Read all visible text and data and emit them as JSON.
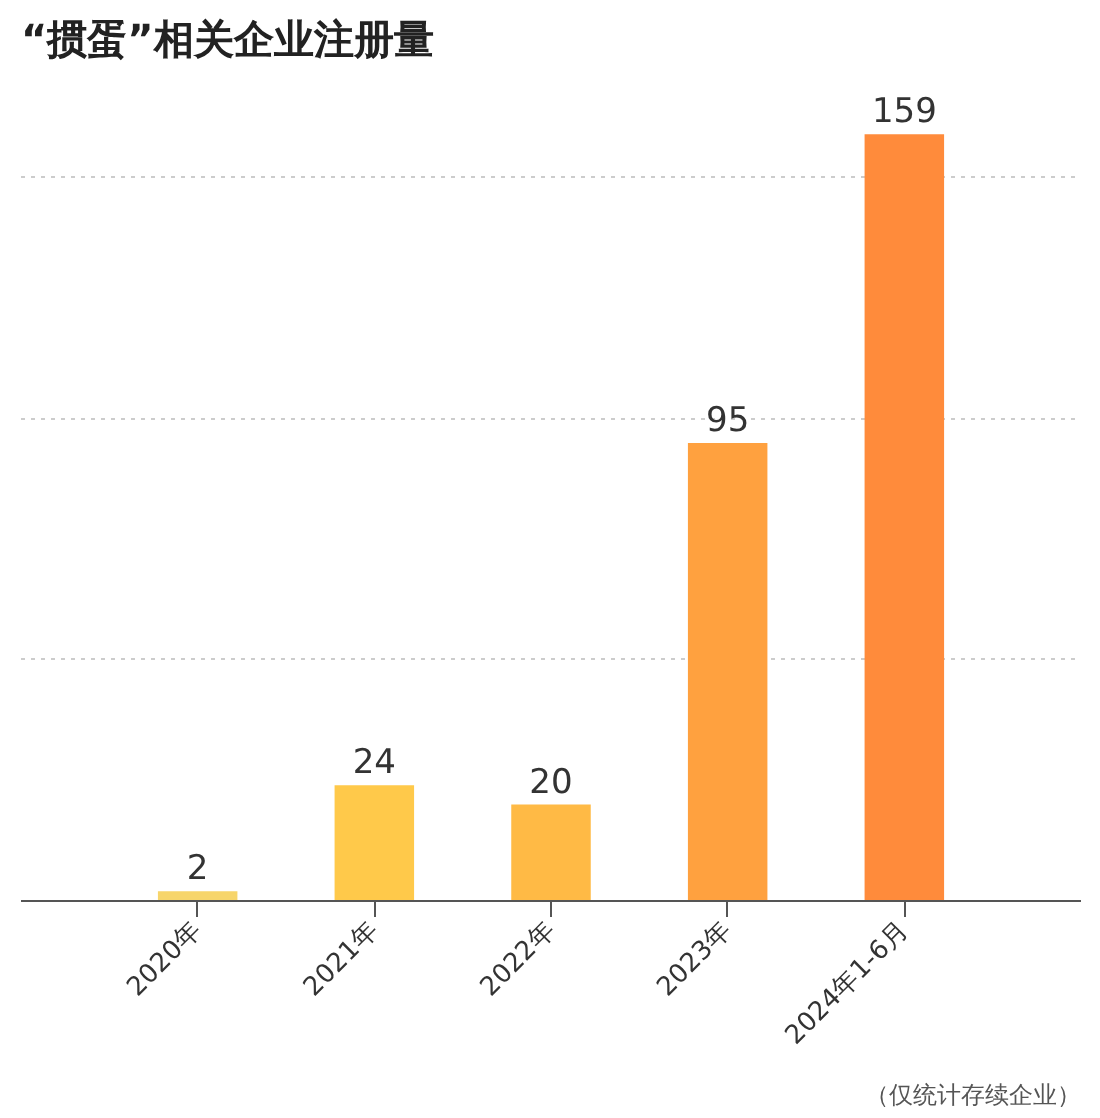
{
  "chart_data": {
    "type": "bar",
    "title": "“掼蛋”相关企业注册量",
    "categories": [
      "2020年",
      "2021年",
      "2022年",
      "2023年",
      "2024年1-6月"
    ],
    "values": [
      2,
      24,
      20,
      95,
      159
    ],
    "colors": [
      "#f7d56b",
      "#ffc94a",
      "#ffba45",
      "#ffa13f",
      "#ff8b3b"
    ],
    "yticks": [
      {
        "value": 0,
        "label": null
      },
      {
        "value": 50,
        "label": null
      },
      {
        "value": 100,
        "label": null
      },
      {
        "value": 150,
        "label": null
      }
    ],
    "grid": "y",
    "data_labels": true,
    "annotations": [
      "（仅统计存续企业）"
    ]
  }
}
